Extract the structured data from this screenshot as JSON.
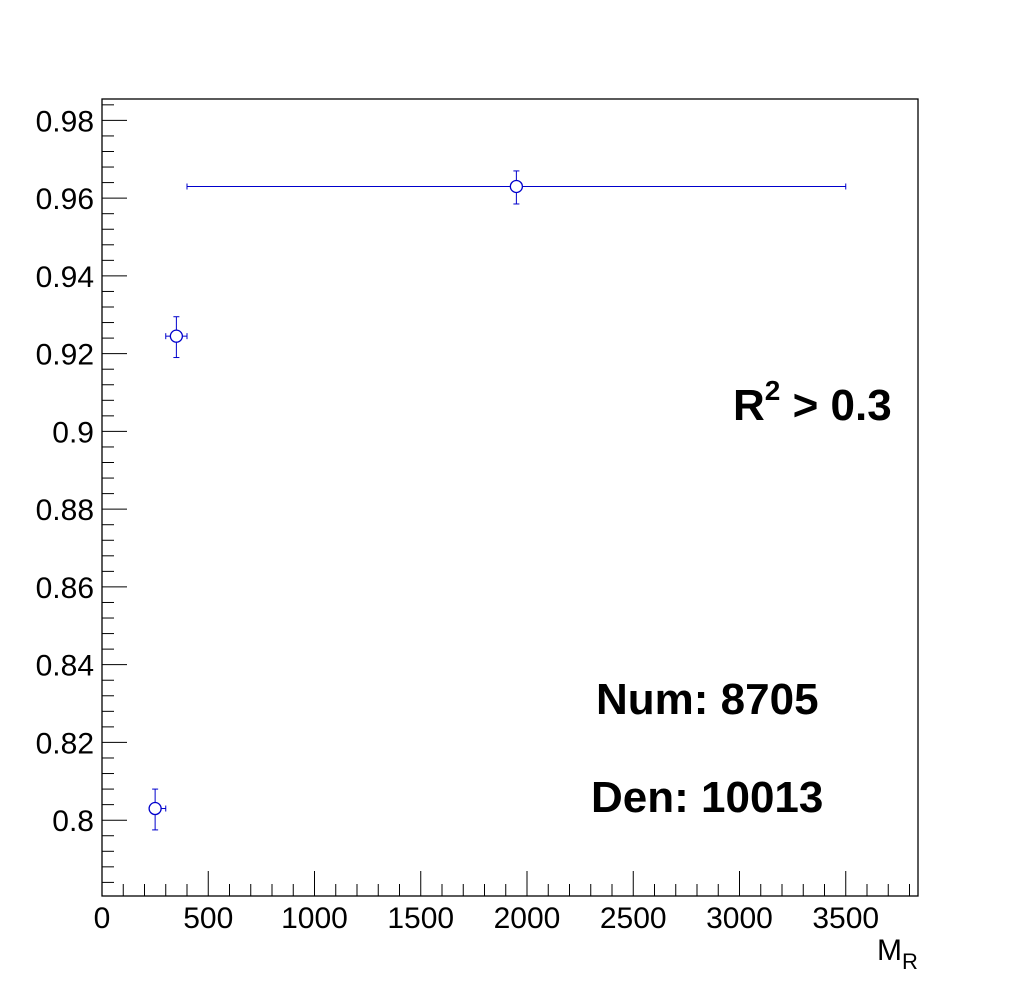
{
  "chart_data": {
    "type": "scatter",
    "xlabel": "M",
    "xlabel_sub": "R",
    "xlim": [
      0,
      3840
    ],
    "ylim": [
      0.7805,
      0.9855
    ],
    "x_ticks": [
      0,
      500,
      1000,
      1500,
      2000,
      2500,
      3000,
      3500
    ],
    "x_tick_labels": [
      "0",
      "500",
      "1000",
      "1500",
      "2000",
      "2500",
      "3000",
      "3500"
    ],
    "y_ticks": [
      0.8,
      0.82,
      0.84,
      0.86,
      0.88,
      0.9,
      0.92,
      0.94,
      0.96,
      0.98
    ],
    "y_tick_labels": [
      "0.8",
      "0.82",
      "0.84",
      "0.86",
      "0.88",
      "0.9",
      "0.92",
      "0.94",
      "0.96",
      "0.98"
    ],
    "grid": false,
    "marker": "open-circle",
    "color": "#0000cc",
    "points": [
      {
        "x": 250,
        "xerr_low": 250,
        "xerr_high": 300,
        "y": 0.803,
        "yerr_low": 0.0055,
        "yerr_high": 0.005
      },
      {
        "x": 350,
        "xerr_low": 300,
        "xerr_high": 400,
        "y": 0.9245,
        "yerr_low": 0.0055,
        "yerr_high": 0.005
      },
      {
        "x": 1950,
        "xerr_low": 400,
        "xerr_high": 3500,
        "y": 0.963,
        "yerr_low": 0.0045,
        "yerr_high": 0.004
      }
    ],
    "annotations": {
      "cut_base": "R",
      "cut_sup": "2",
      "cut_rest": " > 0.3",
      "num": "Num: 8705",
      "den": "Den: 10013"
    }
  }
}
